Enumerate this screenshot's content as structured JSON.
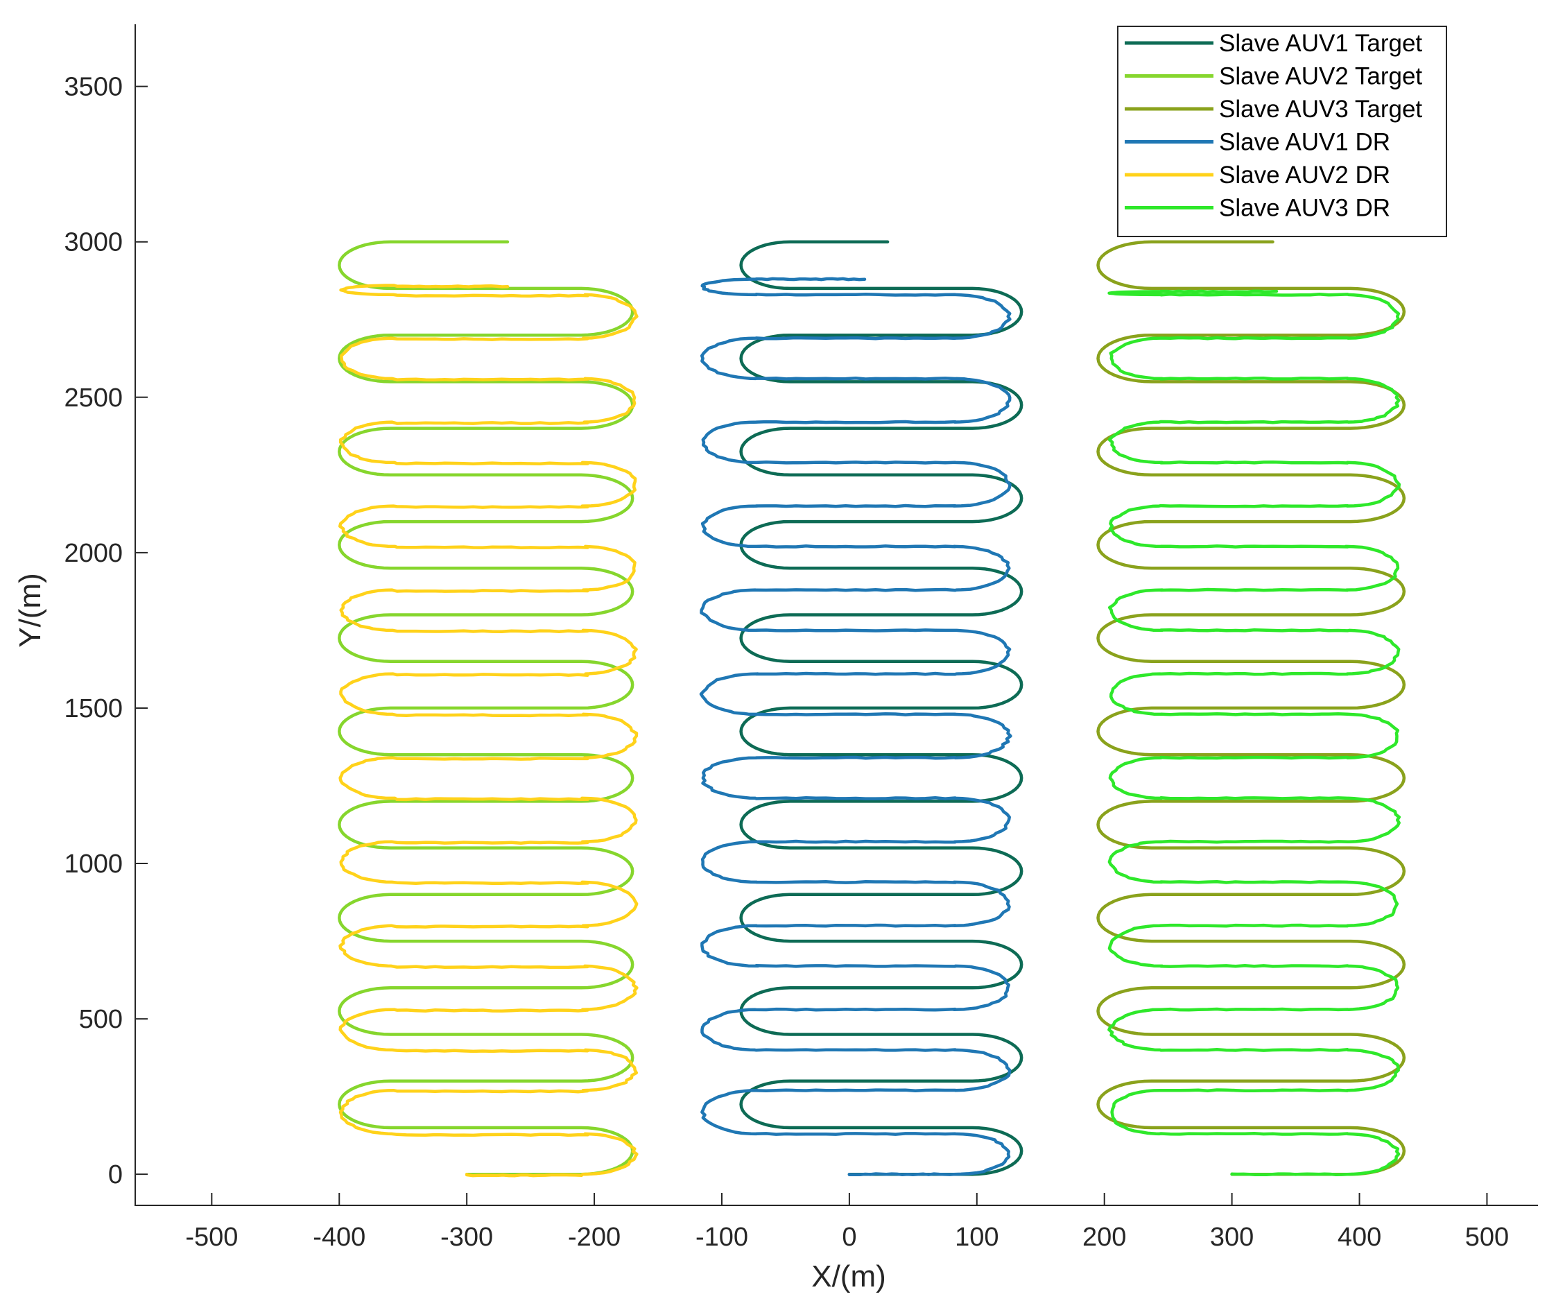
{
  "chart_data": {
    "type": "line",
    "title": "",
    "xlabel": "X/(m)",
    "ylabel": "Y/(m)",
    "xlim": [
      -560,
      540
    ],
    "ylim": [
      -100,
      3700
    ],
    "xticks": [
      -500,
      -400,
      -300,
      -200,
      -100,
      0,
      100,
      200,
      300,
      400,
      500
    ],
    "yticks": [
      0,
      500,
      1000,
      1500,
      2000,
      2500,
      3000,
      3500
    ],
    "grid": false,
    "legend_position": "top-right",
    "series": [
      {
        "name": "Slave AUV1 Target",
        "color": "#0d6b55",
        "offset_x": 0,
        "kind": "target",
        "start": [
          0,
          0
        ],
        "x_min": -85,
        "x_max": 135,
        "rows": [
          0,
          150,
          300,
          450,
          600,
          750,
          900,
          1050,
          1200,
          1350,
          1500,
          1650,
          1800,
          1950,
          2100,
          2250,
          2400,
          2550,
          2700,
          2850,
          3000
        ],
        "end_x": 30
      },
      {
        "name": "Slave AUV2 Target",
        "color": "#86d62d",
        "offset_x": -300,
        "kind": "target",
        "start": [
          -300,
          0
        ],
        "x_min": -400,
        "x_max": -170,
        "rows": [
          0,
          150,
          300,
          450,
          600,
          750,
          900,
          1050,
          1200,
          1350,
          1500,
          1650,
          1800,
          1950,
          2100,
          2250,
          2400,
          2550,
          2700,
          2850,
          3000
        ],
        "end_x": -268
      },
      {
        "name": "Slave AUV3 Target",
        "color": "#8aa21c",
        "offset_x": 300,
        "kind": "target",
        "start": [
          300,
          0
        ],
        "x_min": 195,
        "x_max": 435,
        "rows": [
          0,
          150,
          300,
          450,
          600,
          750,
          900,
          1050,
          1200,
          1350,
          1500,
          1650,
          1800,
          1950,
          2100,
          2250,
          2400,
          2550,
          2700,
          2850,
          3000
        ],
        "end_x": 332
      },
      {
        "name": "Slave AUV1 DR",
        "color": "#1f77b4",
        "offset_x": 0,
        "kind": "dr",
        "start": [
          0,
          0
        ],
        "x_min": -115,
        "x_max": 125,
        "rows": [
          0,
          130,
          270,
          400,
          530,
          670,
          800,
          940,
          1070,
          1210,
          1340,
          1480,
          1610,
          1750,
          1880,
          2020,
          2150,
          2290,
          2420,
          2560,
          2690,
          2830,
          2880
        ],
        "end_x": 12
      },
      {
        "name": "Slave AUV2 DR",
        "color": "#ffd21a",
        "offset_x": -300,
        "kind": "dr",
        "start": [
          -300,
          0
        ],
        "x_min": -395,
        "x_max": -165,
        "rows": [
          0,
          130,
          270,
          400,
          530,
          670,
          800,
          940,
          1070,
          1210,
          1340,
          1480,
          1610,
          1750,
          1880,
          2020,
          2150,
          2290,
          2420,
          2560,
          2690,
          2830,
          2860
        ],
        "end_x": -268
      },
      {
        "name": "Slave AUV3 DR",
        "color": "#2ee82a",
        "offset_x": 300,
        "kind": "dr",
        "start": [
          300,
          0
        ],
        "x_min": 205,
        "x_max": 430,
        "rows": [
          0,
          130,
          270,
          400,
          530,
          670,
          800,
          940,
          1070,
          1210,
          1340,
          1480,
          1610,
          1750,
          1880,
          2020,
          2150,
          2290,
          2420,
          2560,
          2690,
          2830,
          2840
        ],
        "end_x": 335
      }
    ]
  }
}
